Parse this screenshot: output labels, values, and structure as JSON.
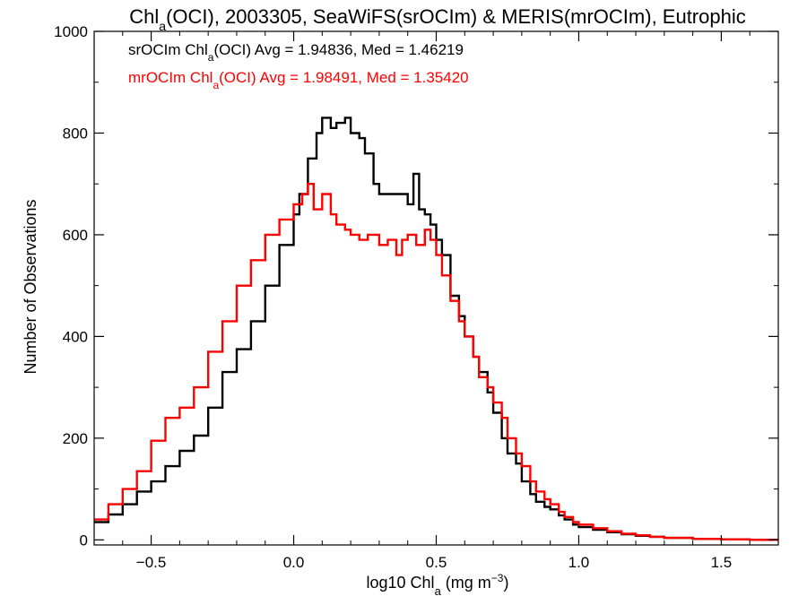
{
  "chart_data": {
    "type": "line",
    "title_parts": [
      "Chl",
      "a",
      "(OCI), 2003305, SeaWiFS(srOCIm) & MERIS(mrOCIm), Eutrophic"
    ],
    "xlabel_parts": [
      "log10 Chl",
      "a",
      " (mg m",
      "−3",
      ")"
    ],
    "ylabel": "Number of Observations",
    "xlim": [
      -0.7,
      1.7
    ],
    "ylim": [
      -10,
      1000
    ],
    "xticks": [
      -0.5,
      0.0,
      0.5,
      1.0,
      1.5
    ],
    "xtick_labels": [
      "−0.5",
      "0.0",
      "0.5",
      "1.0",
      "1.5"
    ],
    "yticks": [
      0,
      200,
      400,
      600,
      800,
      1000
    ],
    "ytick_labels": [
      "0",
      "200",
      "400",
      "600",
      "800",
      "1000"
    ],
    "legend_placement": "top-left",
    "series": [
      {
        "name": "srOCIm",
        "color": "#000000",
        "annotation_parts": [
          "srOCIm Chl",
          "a",
          "(OCI) Avg = 1.94836, Med = 1.46219"
        ],
        "points": [
          [
            -0.7,
            35
          ],
          [
            -0.65,
            50
          ],
          [
            -0.6,
            70
          ],
          [
            -0.55,
            95
          ],
          [
            -0.5,
            115
          ],
          [
            -0.45,
            145
          ],
          [
            -0.4,
            175
          ],
          [
            -0.35,
            205
          ],
          [
            -0.3,
            260
          ],
          [
            -0.25,
            330
          ],
          [
            -0.2,
            375
          ],
          [
            -0.15,
            430
          ],
          [
            -0.1,
            500
          ],
          [
            -0.05,
            580
          ],
          [
            0.0,
            640
          ],
          [
            0.02,
            680
          ],
          [
            0.05,
            750
          ],
          [
            0.08,
            800
          ],
          [
            0.1,
            830
          ],
          [
            0.13,
            810
          ],
          [
            0.15,
            820
          ],
          [
            0.18,
            830
          ],
          [
            0.2,
            800
          ],
          [
            0.23,
            790
          ],
          [
            0.25,
            760
          ],
          [
            0.28,
            700
          ],
          [
            0.3,
            680
          ],
          [
            0.33,
            680
          ],
          [
            0.36,
            680
          ],
          [
            0.4,
            660
          ],
          [
            0.42,
            720
          ],
          [
            0.44,
            650
          ],
          [
            0.46,
            640
          ],
          [
            0.48,
            620
          ],
          [
            0.5,
            590
          ],
          [
            0.52,
            560
          ],
          [
            0.55,
            480
          ],
          [
            0.58,
            440
          ],
          [
            0.6,
            400
          ],
          [
            0.63,
            360
          ],
          [
            0.65,
            330
          ],
          [
            0.68,
            290
          ],
          [
            0.7,
            250
          ],
          [
            0.73,
            200
          ],
          [
            0.75,
            170
          ],
          [
            0.78,
            150
          ],
          [
            0.8,
            115
          ],
          [
            0.83,
            90
          ],
          [
            0.85,
            75
          ],
          [
            0.88,
            65
          ],
          [
            0.9,
            60
          ],
          [
            0.93,
            48
          ],
          [
            0.95,
            40
          ],
          [
            0.98,
            30
          ],
          [
            1.0,
            25
          ],
          [
            1.05,
            20
          ],
          [
            1.1,
            15
          ],
          [
            1.15,
            11
          ],
          [
            1.2,
            8
          ],
          [
            1.25,
            6
          ],
          [
            1.3,
            4
          ],
          [
            1.4,
            2
          ],
          [
            1.5,
            1
          ],
          [
            1.6,
            0
          ],
          [
            1.7,
            0
          ]
        ]
      },
      {
        "name": "mrOCIm",
        "color": "#ff0000",
        "annotation_parts": [
          "mrOCIm Chl",
          "a",
          "(OCI) Avg = 1.98491, Med = 1.35420"
        ],
        "points": [
          [
            -0.7,
            40
          ],
          [
            -0.65,
            70
          ],
          [
            -0.6,
            100
          ],
          [
            -0.55,
            135
          ],
          [
            -0.5,
            195
          ],
          [
            -0.45,
            240
          ],
          [
            -0.4,
            260
          ],
          [
            -0.35,
            300
          ],
          [
            -0.3,
            370
          ],
          [
            -0.25,
            430
          ],
          [
            -0.2,
            500
          ],
          [
            -0.15,
            550
          ],
          [
            -0.1,
            600
          ],
          [
            -0.05,
            630
          ],
          [
            0.0,
            660
          ],
          [
            0.03,
            680
          ],
          [
            0.05,
            700
          ],
          [
            0.07,
            650
          ],
          [
            0.1,
            680
          ],
          [
            0.13,
            640
          ],
          [
            0.15,
            620
          ],
          [
            0.18,
            610
          ],
          [
            0.2,
            600
          ],
          [
            0.23,
            590
          ],
          [
            0.26,
            600
          ],
          [
            0.3,
            580
          ],
          [
            0.33,
            590
          ],
          [
            0.36,
            560
          ],
          [
            0.38,
            590
          ],
          [
            0.4,
            600
          ],
          [
            0.43,
            580
          ],
          [
            0.46,
            610
          ],
          [
            0.48,
            590
          ],
          [
            0.5,
            560
          ],
          [
            0.52,
            520
          ],
          [
            0.55,
            470
          ],
          [
            0.58,
            430
          ],
          [
            0.6,
            400
          ],
          [
            0.63,
            360
          ],
          [
            0.65,
            320
          ],
          [
            0.68,
            300
          ],
          [
            0.7,
            270
          ],
          [
            0.73,
            240
          ],
          [
            0.75,
            200
          ],
          [
            0.78,
            170
          ],
          [
            0.8,
            145
          ],
          [
            0.83,
            115
          ],
          [
            0.85,
            95
          ],
          [
            0.88,
            80
          ],
          [
            0.9,
            70
          ],
          [
            0.93,
            55
          ],
          [
            0.95,
            45
          ],
          [
            0.98,
            35
          ],
          [
            1.0,
            30
          ],
          [
            1.05,
            23
          ],
          [
            1.1,
            17
          ],
          [
            1.15,
            12
          ],
          [
            1.2,
            9
          ],
          [
            1.25,
            6
          ],
          [
            1.3,
            4
          ],
          [
            1.4,
            2
          ],
          [
            1.5,
            1
          ],
          [
            1.6,
            0
          ],
          [
            1.7,
            0
          ]
        ]
      }
    ]
  }
}
